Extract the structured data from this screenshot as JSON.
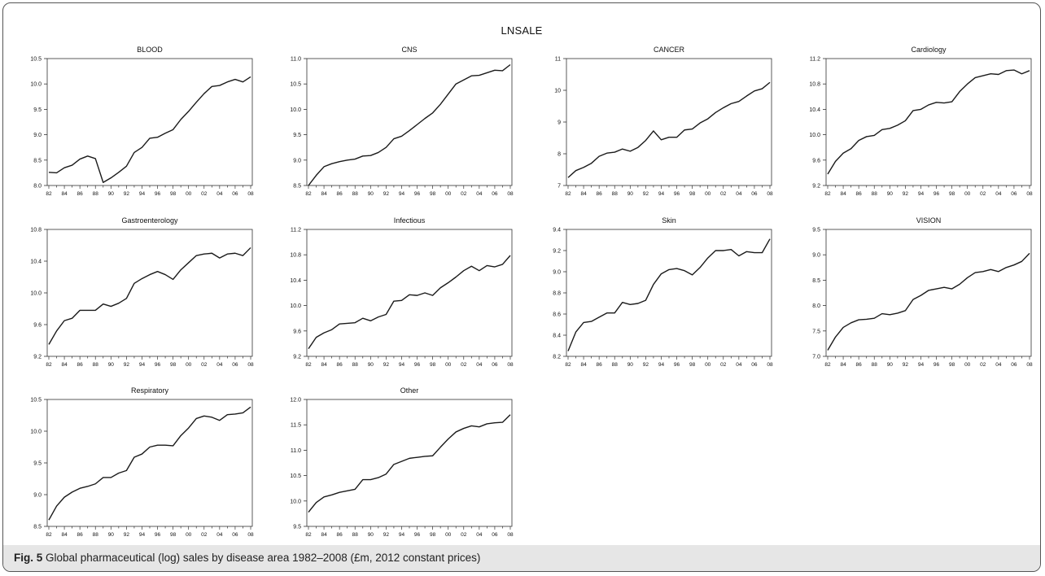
{
  "figure": {
    "supertitle": "LNSALE",
    "caption_label": "Fig. 5",
    "caption_text": " Global pharmaceutical (log) sales by disease area 1982–2008 (£m, 2012 constant prices)"
  },
  "style": {
    "line_color": "#1a1a1a",
    "axis_color": "#333333"
  },
  "chart_data": [
    {
      "type": "line",
      "title": "BLOOD",
      "x": [
        1982,
        1983,
        1984,
        1985,
        1986,
        1987,
        1988,
        1989,
        1990,
        1991,
        1992,
        1993,
        1994,
        1995,
        1996,
        1997,
        1998,
        1999,
        2000,
        2001,
        2002,
        2003,
        2004,
        2005,
        2006,
        2007,
        2008
      ],
      "xticks": [
        "82",
        "84",
        "86",
        "88",
        "90",
        "92",
        "94",
        "96",
        "98",
        "00",
        "02",
        "04",
        "06",
        "08"
      ],
      "ylim": [
        8.0,
        10.5
      ],
      "yticks": [
        "8.0",
        "8.5",
        "9.0",
        "9.5",
        "10.0",
        "10.5"
      ],
      "values": [
        8.26,
        8.25,
        8.35,
        8.4,
        8.52,
        8.58,
        8.53,
        8.06,
        8.15,
        8.26,
        8.38,
        8.65,
        8.75,
        8.93,
        8.95,
        9.03,
        9.1,
        9.3,
        9.46,
        9.64,
        9.81,
        9.95,
        9.97,
        10.04,
        10.09,
        10.04,
        10.14
      ]
    },
    {
      "type": "line",
      "title": "CNS",
      "x": [
        1982,
        1983,
        1984,
        1985,
        1986,
        1987,
        1988,
        1989,
        1990,
        1991,
        1992,
        1993,
        1994,
        1995,
        1996,
        1997,
        1998,
        1999,
        2000,
        2001,
        2002,
        2003,
        2004,
        2005,
        2006,
        2007,
        2008
      ],
      "xticks": [
        "82",
        "84",
        "86",
        "88",
        "90",
        "92",
        "94",
        "96",
        "98",
        "00",
        "02",
        "04",
        "06",
        "08"
      ],
      "ylim": [
        8.5,
        11.0
      ],
      "yticks": [
        "8.5",
        "9.0",
        "9.5",
        "10.0",
        "10.5",
        "11.0"
      ],
      "values": [
        8.5,
        8.7,
        8.87,
        8.93,
        8.97,
        9.0,
        9.02,
        9.08,
        9.09,
        9.15,
        9.25,
        9.42,
        9.47,
        9.58,
        9.7,
        9.82,
        9.93,
        10.1,
        10.3,
        10.5,
        10.58,
        10.66,
        10.67,
        10.72,
        10.77,
        10.76,
        10.88
      ]
    },
    {
      "type": "line",
      "title": "CANCER",
      "x": [
        1982,
        1983,
        1984,
        1985,
        1986,
        1987,
        1988,
        1989,
        1990,
        1991,
        1992,
        1993,
        1994,
        1995,
        1996,
        1997,
        1998,
        1999,
        2000,
        2001,
        2002,
        2003,
        2004,
        2005,
        2006,
        2007,
        2008
      ],
      "xticks": [
        "82",
        "84",
        "86",
        "88",
        "90",
        "92",
        "94",
        "96",
        "98",
        "00",
        "02",
        "04",
        "06",
        "08"
      ],
      "ylim": [
        7,
        11
      ],
      "yticks": [
        "7",
        "8",
        "9",
        "10",
        "11"
      ],
      "values": [
        7.25,
        7.47,
        7.57,
        7.7,
        7.92,
        8.02,
        8.05,
        8.15,
        8.08,
        8.2,
        8.42,
        8.72,
        8.44,
        8.52,
        8.52,
        8.75,
        8.78,
        8.97,
        9.1,
        9.3,
        9.45,
        9.58,
        9.65,
        9.82,
        9.98,
        10.05,
        10.25
      ]
    },
    {
      "type": "line",
      "title": "Cardiology",
      "x": [
        1982,
        1983,
        1984,
        1985,
        1986,
        1987,
        1988,
        1989,
        1990,
        1991,
        1992,
        1993,
        1994,
        1995,
        1996,
        1997,
        1998,
        1999,
        2000,
        2001,
        2002,
        2003,
        2004,
        2005,
        2006,
        2007,
        2008
      ],
      "xticks": [
        "82",
        "84",
        "86",
        "88",
        "90",
        "92",
        "94",
        "96",
        "98",
        "00",
        "02",
        "04",
        "06",
        "08"
      ],
      "ylim": [
        9.2,
        11.2
      ],
      "yticks": [
        "9.2",
        "9.6",
        "10.0",
        "10.4",
        "10.8",
        "11.2"
      ],
      "values": [
        9.38,
        9.58,
        9.71,
        9.78,
        9.91,
        9.97,
        9.99,
        10.08,
        10.1,
        10.15,
        10.22,
        10.38,
        10.4,
        10.47,
        10.51,
        10.5,
        10.52,
        10.68,
        10.8,
        10.9,
        10.93,
        10.96,
        10.95,
        11.01,
        11.02,
        10.96,
        11.01
      ]
    },
    {
      "type": "line",
      "title": "Gastroenterology",
      "x": [
        1982,
        1983,
        1984,
        1985,
        1986,
        1987,
        1988,
        1989,
        1990,
        1991,
        1992,
        1993,
        1994,
        1995,
        1996,
        1997,
        1998,
        1999,
        2000,
        2001,
        2002,
        2003,
        2004,
        2005,
        2006,
        2007,
        2008
      ],
      "xticks": [
        "82",
        "84",
        "86",
        "88",
        "90",
        "92",
        "94",
        "96",
        "98",
        "00",
        "02",
        "04",
        "06",
        "08"
      ],
      "ylim": [
        9.2,
        10.8
      ],
      "yticks": [
        "9.2",
        "9.6",
        "10.0",
        "10.4",
        "10.8"
      ],
      "values": [
        9.35,
        9.52,
        9.65,
        9.68,
        9.78,
        9.78,
        9.78,
        9.86,
        9.83,
        9.87,
        9.93,
        10.12,
        10.18,
        10.23,
        10.27,
        10.23,
        10.17,
        10.29,
        10.38,
        10.47,
        10.49,
        10.5,
        10.44,
        10.49,
        10.5,
        10.47,
        10.57
      ]
    },
    {
      "type": "line",
      "title": "Infectious",
      "x": [
        1982,
        1983,
        1984,
        1985,
        1986,
        1987,
        1988,
        1989,
        1990,
        1991,
        1992,
        1993,
        1994,
        1995,
        1996,
        1997,
        1998,
        1999,
        2000,
        2001,
        2002,
        2003,
        2004,
        2005,
        2006,
        2007,
        2008
      ],
      "xticks": [
        "82",
        "84",
        "86",
        "88",
        "90",
        "92",
        "94",
        "96",
        "98",
        "00",
        "02",
        "04",
        "06",
        "08"
      ],
      "ylim": [
        9.2,
        11.2
      ],
      "yticks": [
        "9.2",
        "9.6",
        "10.0",
        "10.4",
        "10.8",
        "11.2"
      ],
      "values": [
        9.32,
        9.5,
        9.57,
        9.62,
        9.71,
        9.72,
        9.73,
        9.8,
        9.76,
        9.82,
        9.86,
        10.07,
        10.08,
        10.17,
        10.16,
        10.2,
        10.16,
        10.28,
        10.36,
        10.45,
        10.55,
        10.62,
        10.55,
        10.63,
        10.61,
        10.65,
        10.79
      ]
    },
    {
      "type": "line",
      "title": "Skin",
      "x": [
        1982,
        1983,
        1984,
        1985,
        1986,
        1987,
        1988,
        1989,
        1990,
        1991,
        1992,
        1993,
        1994,
        1995,
        1996,
        1997,
        1998,
        1999,
        2000,
        2001,
        2002,
        2003,
        2004,
        2005,
        2006,
        2007,
        2008
      ],
      "xticks": [
        "82",
        "84",
        "86",
        "88",
        "90",
        "92",
        "94",
        "96",
        "98",
        "00",
        "02",
        "04",
        "06",
        "08"
      ],
      "ylim": [
        8.2,
        9.4
      ],
      "yticks": [
        "8.2",
        "8.4",
        "8.6",
        "8.8",
        "9.0",
        "9.2",
        "9.4"
      ],
      "values": [
        8.25,
        8.43,
        8.52,
        8.53,
        8.57,
        8.61,
        8.61,
        8.71,
        8.69,
        8.7,
        8.73,
        8.88,
        8.98,
        9.02,
        9.03,
        9.01,
        8.97,
        9.04,
        9.13,
        9.2,
        9.2,
        9.21,
        9.15,
        9.19,
        9.18,
        9.18,
        9.31
      ]
    },
    {
      "type": "line",
      "title": "VISION",
      "x": [
        1982,
        1983,
        1984,
        1985,
        1986,
        1987,
        1988,
        1989,
        1990,
        1991,
        1992,
        1993,
        1994,
        1995,
        1996,
        1997,
        1998,
        1999,
        2000,
        2001,
        2002,
        2003,
        2004,
        2005,
        2006,
        2007,
        2008
      ],
      "xticks": [
        "82",
        "84",
        "86",
        "88",
        "90",
        "92",
        "94",
        "96",
        "98",
        "00",
        "02",
        "04",
        "06",
        "08"
      ],
      "ylim": [
        7.0,
        9.5
      ],
      "yticks": [
        "7.0",
        "7.5",
        "8.0",
        "8.5",
        "9.0",
        "9.5"
      ],
      "values": [
        7.12,
        7.38,
        7.57,
        7.66,
        7.72,
        7.73,
        7.75,
        7.84,
        7.82,
        7.85,
        7.9,
        8.12,
        8.2,
        8.3,
        8.33,
        8.36,
        8.33,
        8.42,
        8.55,
        8.65,
        8.67,
        8.71,
        8.67,
        8.75,
        8.8,
        8.87,
        9.03
      ]
    },
    {
      "type": "line",
      "title": "Respiratory",
      "x": [
        1982,
        1983,
        1984,
        1985,
        1986,
        1987,
        1988,
        1989,
        1990,
        1991,
        1992,
        1993,
        1994,
        1995,
        1996,
        1997,
        1998,
        1999,
        2000,
        2001,
        2002,
        2003,
        2004,
        2005,
        2006,
        2007,
        2008
      ],
      "xticks": [
        "82",
        "84",
        "86",
        "88",
        "90",
        "92",
        "94",
        "96",
        "98",
        "00",
        "02",
        "04",
        "06",
        "08"
      ],
      "ylim": [
        8.5,
        10.5
      ],
      "yticks": [
        "8.5",
        "9.0",
        "9.5",
        "10.0",
        "10.5"
      ],
      "values": [
        8.6,
        8.82,
        8.96,
        9.04,
        9.1,
        9.13,
        9.17,
        9.27,
        9.27,
        9.34,
        9.38,
        9.59,
        9.64,
        9.75,
        9.78,
        9.78,
        9.77,
        9.93,
        10.05,
        10.2,
        10.24,
        10.22,
        10.17,
        10.26,
        10.27,
        10.29,
        10.38
      ]
    },
    {
      "type": "line",
      "title": "Other",
      "x": [
        1982,
        1983,
        1984,
        1985,
        1986,
        1987,
        1988,
        1989,
        1990,
        1991,
        1992,
        1993,
        1994,
        1995,
        1996,
        1997,
        1998,
        1999,
        2000,
        2001,
        2002,
        2003,
        2004,
        2005,
        2006,
        2007,
        2008
      ],
      "xticks": [
        "82",
        "84",
        "86",
        "88",
        "90",
        "92",
        "94",
        "96",
        "98",
        "00",
        "02",
        "04",
        "06",
        "08"
      ],
      "ylim": [
        9.5,
        12.0
      ],
      "yticks": [
        "9.5",
        "10.0",
        "10.5",
        "11.0",
        "11.5",
        "12.0"
      ],
      "values": [
        9.78,
        9.97,
        10.08,
        10.12,
        10.17,
        10.2,
        10.23,
        10.42,
        10.42,
        10.46,
        10.53,
        10.72,
        10.78,
        10.84,
        10.86,
        10.88,
        10.89,
        11.06,
        11.22,
        11.36,
        11.43,
        11.48,
        11.46,
        11.52,
        11.54,
        11.55,
        11.7
      ]
    }
  ]
}
